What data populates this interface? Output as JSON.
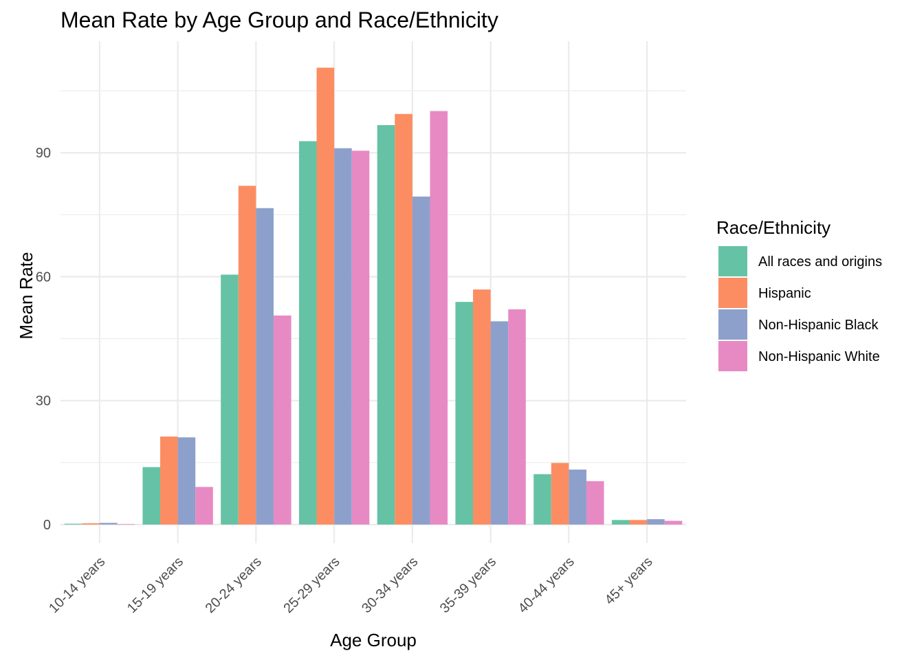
{
  "chart_data": {
    "type": "bar",
    "title": "Mean Rate by Age Group and Race/Ethnicity",
    "xlabel": "Age Group",
    "ylabel": "Mean Rate",
    "categories": [
      "10-14 years",
      "15-19 years",
      "20-24 years",
      "25-29 years",
      "30-34 years",
      "35-39 years",
      "40-44 years",
      "45+ years"
    ],
    "yticks": [
      "0",
      "30",
      "60",
      "90"
    ],
    "ylim": [
      -4.5,
      117
    ],
    "grid": true,
    "legend": {
      "title": "Race/Ethnicity",
      "placement": "right"
    },
    "series": [
      {
        "name": "All races and origins",
        "color": "#66C2A5",
        "values": [
          0.2,
          13.9,
          60.5,
          92.8,
          96.7,
          53.9,
          12.2,
          1.1
        ]
      },
      {
        "name": "Hispanic",
        "color": "#FC8D62",
        "values": [
          0.3,
          21.3,
          82.0,
          110.6,
          99.4,
          56.9,
          14.9,
          1.1
        ]
      },
      {
        "name": "Non-Hispanic Black",
        "color": "#8DA0CB",
        "values": [
          0.4,
          21.1,
          76.6,
          91.1,
          79.4,
          49.2,
          13.3,
          1.3
        ]
      },
      {
        "name": "Non-Hispanic White",
        "color": "#E78AC3",
        "values": [
          0.1,
          9.1,
          50.6,
          90.5,
          100.1,
          52.1,
          10.5,
          0.9
        ]
      }
    ]
  }
}
